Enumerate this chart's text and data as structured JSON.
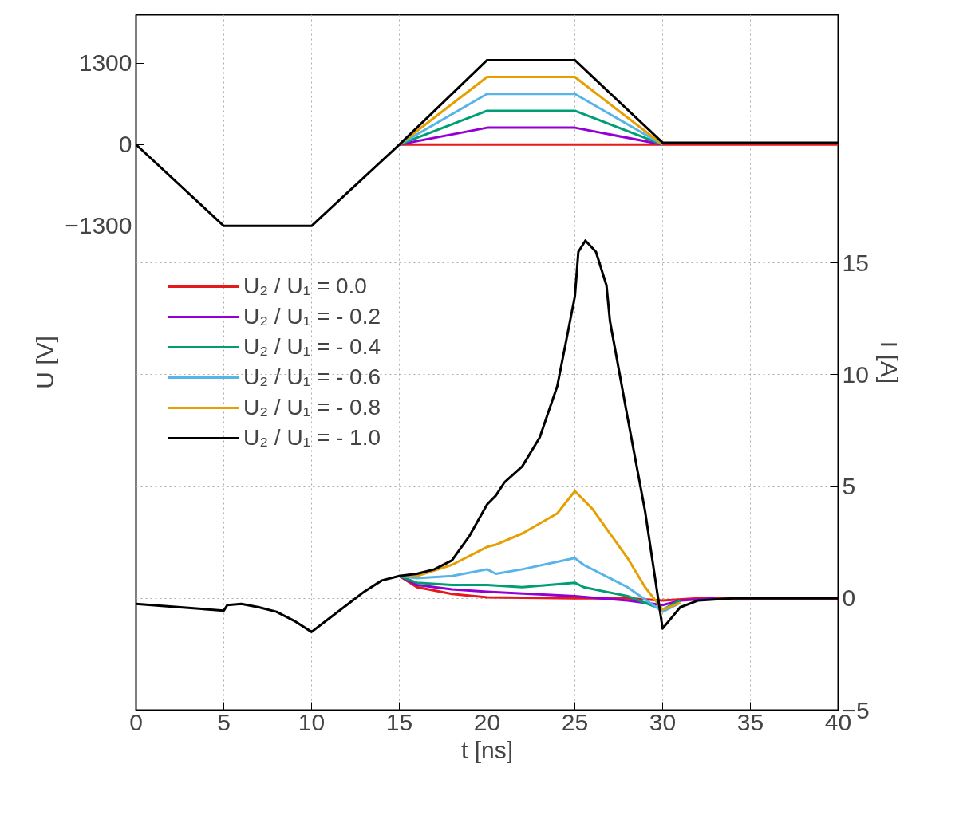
{
  "chart_data": {
    "type": "line",
    "xlabel": "t [ns]",
    "ylabel": "U [V]",
    "y2label": "I [A]",
    "xlim": [
      0,
      40
    ],
    "xticks": [
      0,
      5,
      10,
      15,
      20,
      25,
      30,
      35,
      40
    ],
    "ylim": [
      -9040,
      2075
    ],
    "yticks": [
      -1300,
      0,
      1300
    ],
    "y2lim": [
      -5,
      26.1
    ],
    "y2ticks": [
      -5,
      0,
      5,
      10,
      15
    ],
    "grid": true,
    "legend": "left",
    "line_style": "solid",
    "marker": "none",
    "series": [
      {
        "name": "U₂ / U₁ = 0.0",
        "color": "#e41a1c",
        "x": [
          15,
          20,
          25,
          30,
          40
        ],
        "values": [
          0,
          0,
          0,
          0,
          0
        ]
      },
      {
        "name": "U₂ / U₁ = - 0.2",
        "color": "#9400d3",
        "x": [
          15,
          20,
          25,
          30
        ],
        "values": [
          0,
          270,
          270,
          0
        ]
      },
      {
        "name": "U₂ / U₁ = - 0.4",
        "color": "#009e73",
        "x": [
          15,
          20,
          25,
          30
        ],
        "values": [
          0,
          540,
          540,
          0
        ]
      },
      {
        "name": "U₂ / U₁ = - 0.6",
        "color": "#56b4e9",
        "x": [
          15,
          20,
          25,
          30
        ],
        "values": [
          0,
          810,
          810,
          0
        ]
      },
      {
        "name": "U₂ / U₁ = - 0.8",
        "color": "#e69f00",
        "x": [
          15,
          20,
          25,
          30
        ],
        "values": [
          0,
          1080,
          1080,
          0
        ]
      },
      {
        "name": "U₂ / U₁ = - 1.0",
        "color": "#000000",
        "x": [
          0,
          5,
          10,
          15,
          20,
          25,
          30,
          40
        ],
        "values": [
          0,
          -1300,
          -1300,
          0,
          1350,
          1350,
          30,
          30
        ]
      },
      {
        "axis": "y2",
        "color": "#e41a1c",
        "x": [
          15,
          16,
          18,
          20,
          25,
          28,
          30,
          32,
          40
        ],
        "values": [
          1.0,
          0.5,
          0.2,
          0.05,
          0,
          0,
          -0.1,
          0,
          0
        ]
      },
      {
        "axis": "y2",
        "color": "#9400d3",
        "x": [
          15,
          16,
          18,
          20,
          25,
          28,
          30,
          31,
          33
        ],
        "values": [
          1.0,
          0.6,
          0.4,
          0.3,
          0.1,
          -0.1,
          -0.3,
          -0.1,
          0
        ]
      },
      {
        "axis": "y2",
        "color": "#009e73",
        "x": [
          15,
          16,
          18,
          20,
          22,
          25,
          25.5,
          28,
          30,
          31
        ],
        "values": [
          1.0,
          0.7,
          0.6,
          0.6,
          0.5,
          0.7,
          0.5,
          0.1,
          -0.5,
          -0.1
        ]
      },
      {
        "axis": "y2",
        "color": "#56b4e9",
        "x": [
          15,
          16,
          18,
          20,
          20.5,
          22,
          25,
          25.5,
          28,
          30,
          31
        ],
        "values": [
          1.0,
          0.9,
          1.0,
          1.3,
          1.1,
          1.3,
          1.8,
          1.5,
          0.5,
          -0.6,
          -0.2
        ]
      },
      {
        "axis": "y2",
        "color": "#e69f00",
        "x": [
          15,
          16,
          18,
          20,
          20.5,
          22,
          24,
          25,
          26,
          28,
          29,
          30,
          31
        ],
        "values": [
          1.0,
          1.0,
          1.5,
          2.3,
          2.4,
          2.9,
          3.8,
          4.8,
          4.0,
          1.8,
          0.5,
          -0.5,
          -0.2
        ]
      },
      {
        "axis": "y2",
        "color": "#000000",
        "x": [
          0,
          5,
          5.2,
          6,
          7,
          8,
          9,
          10,
          11,
          12,
          13,
          14,
          15,
          16,
          17,
          18,
          19,
          20,
          20.5,
          21,
          22,
          23,
          24,
          25,
          25.2,
          25.6,
          26.2,
          26.8,
          27,
          28,
          29,
          30,
          31,
          32,
          34,
          40
        ],
        "values": [
          -0.25,
          -0.55,
          -0.3,
          -0.25,
          -0.4,
          -0.6,
          -1.0,
          -1.5,
          -0.9,
          -0.3,
          0.3,
          0.8,
          1.0,
          1.1,
          1.3,
          1.7,
          2.8,
          4.2,
          4.6,
          5.2,
          5.9,
          7.2,
          9.5,
          13.5,
          15.5,
          16.0,
          15.5,
          14.0,
          12.4,
          8.1,
          3.9,
          -1.35,
          -0.4,
          -0.1,
          0,
          0
        ]
      }
    ]
  }
}
